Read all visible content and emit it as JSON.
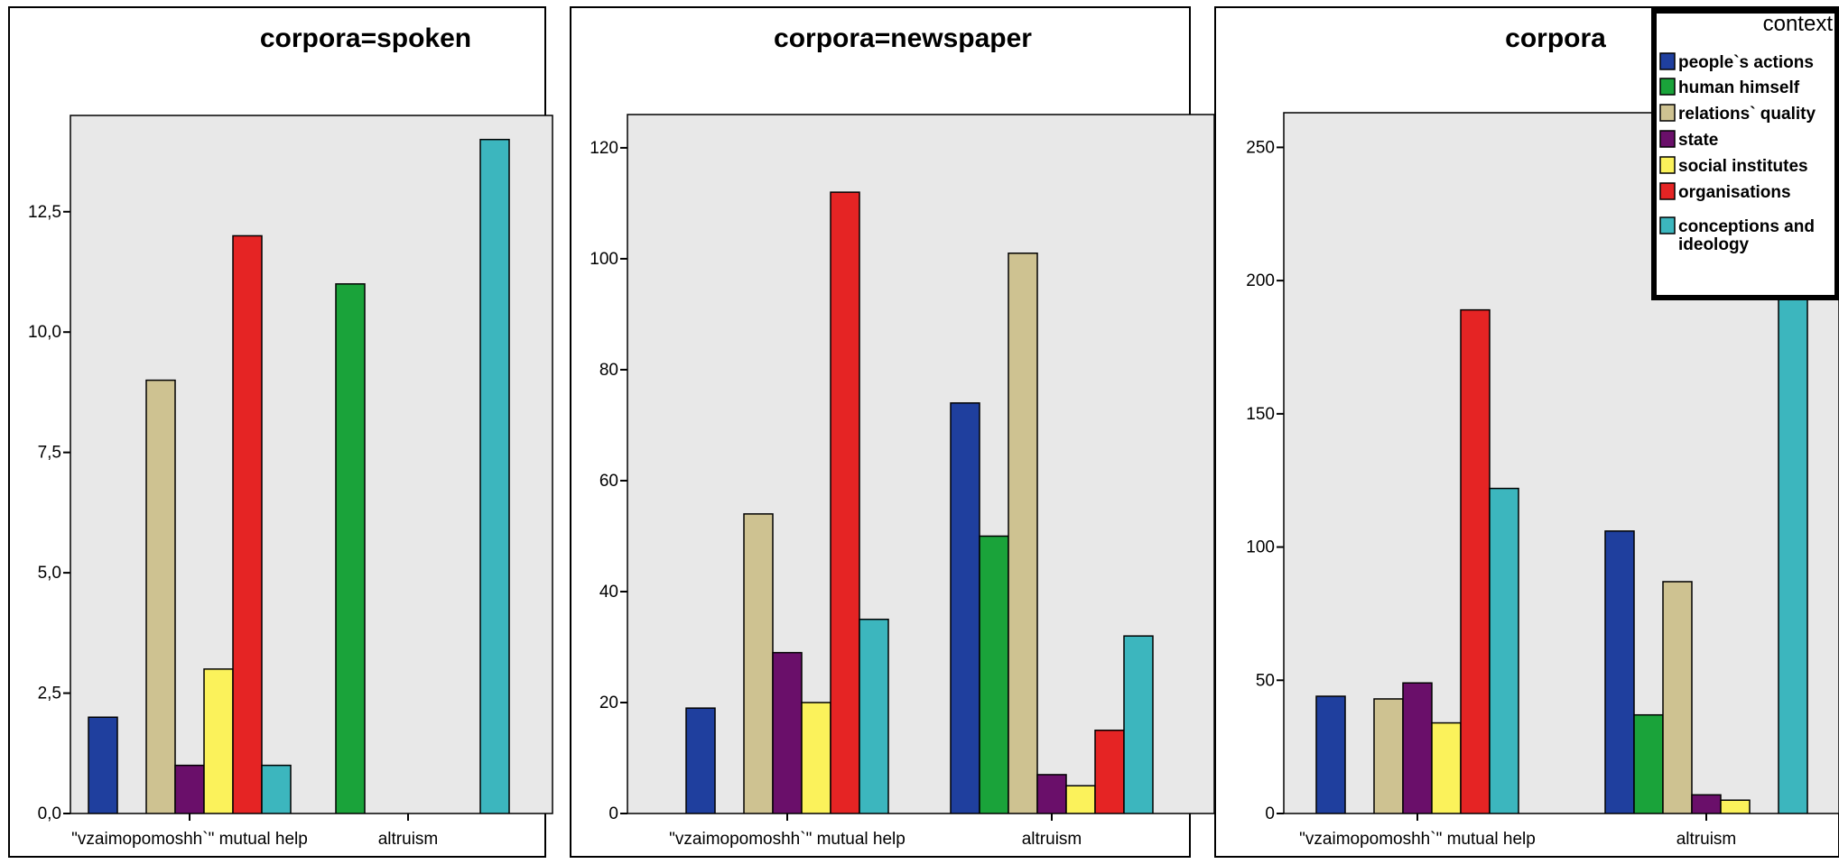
{
  "chart_data": [
    {
      "type": "bar",
      "title": "corpora=spoken",
      "categories": [
        "\"vzaimopomoshh`\" mutual help",
        "altruism"
      ],
      "series": [
        {
          "name": "people`s actions",
          "values": [
            2,
            0
          ]
        },
        {
          "name": "human himself",
          "values": [
            0,
            11
          ]
        },
        {
          "name": "relations` quality",
          "values": [
            9,
            0
          ]
        },
        {
          "name": "state",
          "values": [
            1,
            0
          ]
        },
        {
          "name": "social institutes",
          "values": [
            3,
            0
          ]
        },
        {
          "name": "organisations",
          "values": [
            12,
            0
          ]
        },
        {
          "name": "conceptions and ideology",
          "values": [
            1,
            14
          ]
        }
      ],
      "yticks": [
        "0,0",
        "2,5",
        "5,0",
        "7,5",
        "10,0",
        "12,5"
      ],
      "ylim": [
        0,
        14.5
      ],
      "xlabel": "",
      "ylabel": ""
    },
    {
      "type": "bar",
      "title": "corpora=newspaper",
      "categories": [
        "\"vzaimopomoshh`\" mutual help",
        "altruism"
      ],
      "series": [
        {
          "name": "people`s actions",
          "values": [
            19,
            74
          ]
        },
        {
          "name": "human himself",
          "values": [
            0,
            50
          ]
        },
        {
          "name": "relations` quality",
          "values": [
            54,
            101
          ]
        },
        {
          "name": "state",
          "values": [
            29,
            7
          ]
        },
        {
          "name": "social institutes",
          "values": [
            20,
            5
          ]
        },
        {
          "name": "organisations",
          "values": [
            112,
            15
          ]
        },
        {
          "name": "conceptions and ideology",
          "values": [
            35,
            32
          ]
        }
      ],
      "yticks": [
        "0",
        "20",
        "40",
        "60",
        "80",
        "100",
        "120"
      ],
      "ylim": [
        0,
        126
      ],
      "xlabel": "",
      "ylabel": ""
    },
    {
      "type": "bar",
      "title": "corpora",
      "categories": [
        "\"vzaimopomoshh`\" mutual help",
        "altruism"
      ],
      "series": [
        {
          "name": "people`s actions",
          "values": [
            44,
            106
          ]
        },
        {
          "name": "human himself",
          "values": [
            0,
            37
          ]
        },
        {
          "name": "relations` quality",
          "values": [
            43,
            87
          ]
        },
        {
          "name": "state",
          "values": [
            49,
            7
          ]
        },
        {
          "name": "social institutes",
          "values": [
            34,
            5
          ]
        },
        {
          "name": "organisations",
          "values": [
            189,
            0
          ]
        },
        {
          "name": "conceptions and ideology",
          "values": [
            122,
            205
          ]
        }
      ],
      "yticks": [
        "0",
        "50",
        "100",
        "150",
        "200",
        "250"
      ],
      "ylim": [
        0,
        263
      ],
      "xlabel": "",
      "ylabel": ""
    }
  ],
  "legend": {
    "title": "context",
    "placement": "top-right",
    "items": [
      {
        "label": "people`s actions",
        "color": "#1f3f9e"
      },
      {
        "label": "human himself",
        "color": "#1aa33a"
      },
      {
        "label": "relations` quality",
        "color": "#cec291"
      },
      {
        "label": "state",
        "color": "#6a0f6a"
      },
      {
        "label": "social institutes",
        "color": "#fbf25b"
      },
      {
        "label": "organisations",
        "color": "#e52424"
      },
      {
        "label": "conceptions and",
        "label2": "ideology",
        "color": "#3cb6be"
      }
    ]
  },
  "colors": {
    "plot_background": "#e8e8e8",
    "page_background": "#ffffff"
  }
}
